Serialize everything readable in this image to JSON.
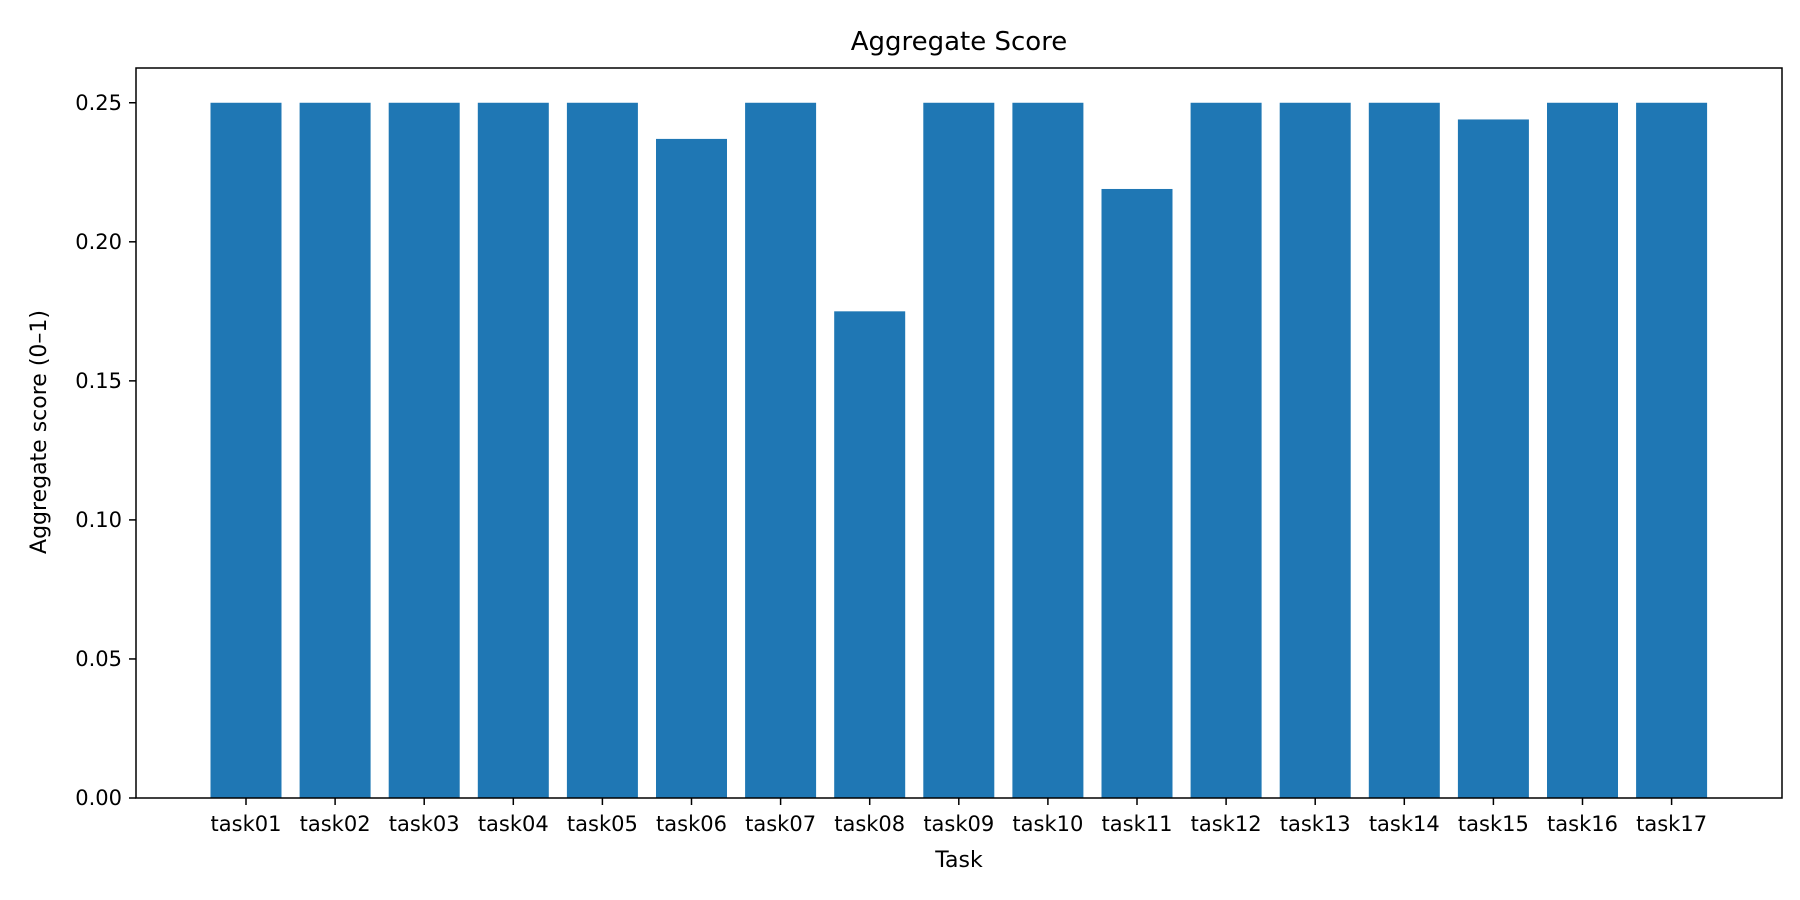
{
  "chart_data": {
    "type": "bar",
    "title": "Aggregate Score",
    "xlabel": "Task",
    "ylabel": "Aggregate score (0–1)",
    "ylim": [
      0,
      0.2625
    ],
    "yticks": [
      0.0,
      0.05,
      0.1,
      0.15,
      0.2,
      0.25
    ],
    "ytick_labels": [
      "0.00",
      "0.05",
      "0.10",
      "0.15",
      "0.20",
      "0.25"
    ],
    "categories": [
      "task01",
      "task02",
      "task03",
      "task04",
      "task05",
      "task06",
      "task07",
      "task08",
      "task09",
      "task10",
      "task11",
      "task12",
      "task13",
      "task14",
      "task15",
      "task16",
      "task17"
    ],
    "values": [
      0.25,
      0.25,
      0.25,
      0.25,
      0.25,
      0.237,
      0.25,
      0.175,
      0.25,
      0.25,
      0.219,
      0.25,
      0.25,
      0.25,
      0.244,
      0.25,
      0.25
    ],
    "bar_color": "#1f77b4",
    "grid": false,
    "legend": "none"
  }
}
